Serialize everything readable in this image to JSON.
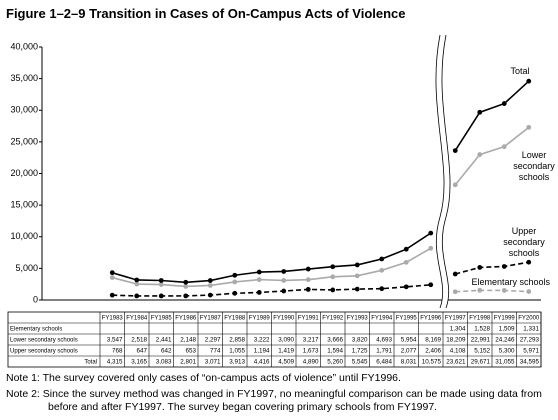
{
  "chart_data": {
    "type": "line",
    "title": "Figure 1–2–9  Transition in Cases of On-Campus Acts of Violence",
    "categories": [
      "FY1983",
      "FY1984",
      "FY1985",
      "FY1986",
      "FY1987",
      "FY1988",
      "FY1989",
      "FY1990",
      "FY1991",
      "FY1992",
      "FY1993",
      "FY1994",
      "FY1995",
      "FY1996",
      "FY1997",
      "FY1998",
      "FY1999",
      "FY2000"
    ],
    "ylim": [
      0,
      40000
    ],
    "yticks": [
      0,
      {
        "value": 5000,
        "label": "5,000"
      },
      {
        "value": 10000,
        "label": "10,000"
      },
      {
        "value": 15000,
        "label": "15,000"
      },
      {
        "value": 20000,
        "label": "20,000"
      },
      {
        "value": 25000,
        "label": "25,000"
      },
      {
        "value": 30000,
        "label": "30,000"
      },
      {
        "value": 35000,
        "label": "35,000"
      },
      {
        "value": 40000,
        "label": "40,000"
      }
    ],
    "series": [
      {
        "name": "Elementary schools",
        "color": "#aaaaaa",
        "dash": true,
        "values": [
          null,
          null,
          null,
          null,
          null,
          null,
          null,
          null,
          null,
          null,
          null,
          null,
          null,
          null,
          1304,
          1528,
          1509,
          1331
        ],
        "value_labels": [
          null,
          null,
          null,
          null,
          null,
          null,
          null,
          null,
          null,
          null,
          null,
          null,
          null,
          null,
          "1,304",
          "1,528",
          "1,509",
          "1,331"
        ]
      },
      {
        "name": "Lower secondary schools",
        "color": "#aaaaaa",
        "dash": false,
        "values": [
          3547,
          2518,
          2441,
          2148,
          2297,
          2858,
          3222,
          3090,
          3217,
          3666,
          3820,
          4693,
          5954,
          8169,
          18209,
          22991,
          24246,
          27293
        ],
        "value_labels": [
          "3,547",
          "2,518",
          "2,441",
          "2,148",
          "2,297",
          "2,858",
          "3,222",
          "3,090",
          "3,217",
          "3,666",
          "3,820",
          "4,693",
          "5,954",
          "8,169",
          "18,209",
          "22,991",
          "24,246",
          "27,293"
        ]
      },
      {
        "name": "Upper secondary schools",
        "color": "#000000",
        "dash": true,
        "values": [
          768,
          647,
          642,
          653,
          774,
          1055,
          1194,
          1419,
          1673,
          1594,
          1725,
          1791,
          2077,
          2406,
          4108,
          5152,
          5300,
          5971
        ],
        "value_labels": [
          "768",
          "647",
          "642",
          "653",
          "774",
          "1,055",
          "1,194",
          "1,419",
          "1,673",
          "1,594",
          "1,725",
          "1,791",
          "2,077",
          "2,406",
          "4,108",
          "5,152",
          "5,300",
          "5,971"
        ]
      },
      {
        "name": "Total",
        "color": "#000000",
        "dash": false,
        "values": [
          4315,
          3165,
          3083,
          2801,
          3071,
          3913,
          4416,
          4509,
          4890,
          5260,
          5545,
          6484,
          8031,
          10575,
          23621,
          29671,
          31055,
          34595
        ],
        "value_labels": [
          "4,315",
          "3,165",
          "3,083",
          "2,801",
          "3,071",
          "3,913",
          "4,416",
          "4,509",
          "4,890",
          "5,260",
          "5,545",
          "6,484",
          "8,031",
          "10,575",
          "23,621",
          "29,671",
          "31,055",
          "34,595"
        ]
      }
    ],
    "notes": [
      "Note 1: The survey covered only cases of “on-campus acts of violence” until FY1996.",
      "Note 2: Since the survey method was changed in FY1997, no meaningful comparison can be made using data from before and after FY1997. The survey began covering primary schools from FY1997."
    ]
  }
}
